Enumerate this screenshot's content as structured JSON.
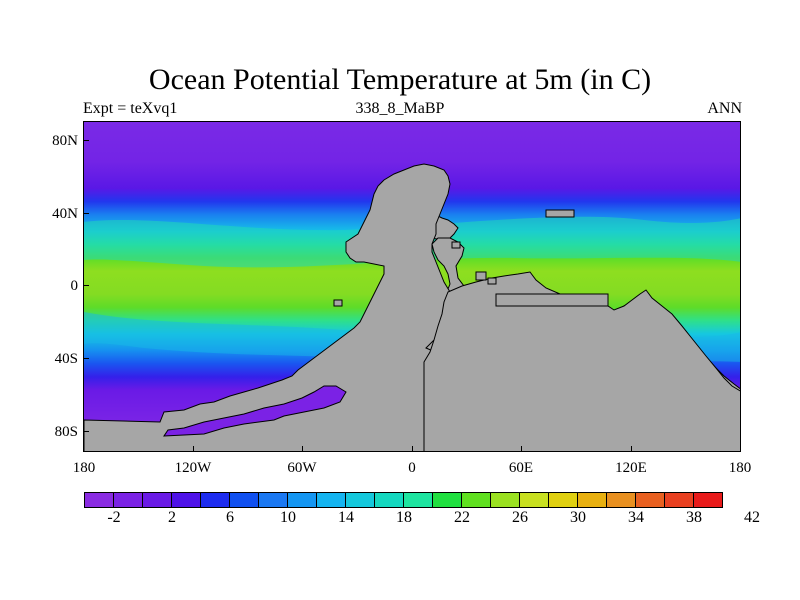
{
  "title": "Ocean Potential Temperature at 5m (in C)",
  "left_label": "Expt = teXvq1",
  "center_label": "338_8_MaBP",
  "right_label": "ANN",
  "lat_labels": [
    "80N",
    "40N",
    "0",
    "40S",
    "80S"
  ],
  "lon_labels": [
    "180",
    "120W",
    "60W",
    "0",
    "60E",
    "120E",
    "180"
  ],
  "colorbar": {
    "labels": [
      "-2",
      "2",
      "6",
      "10",
      "14",
      "18",
      "22",
      "26",
      "30",
      "34",
      "38",
      "42"
    ],
    "colors": [
      "#8a2be2",
      "#7b22e5",
      "#6a1ae6",
      "#4e12e8",
      "#1d2cf0",
      "#1050f0",
      "#1a78f2",
      "#1496f2",
      "#14b4f0",
      "#14c8dc",
      "#14d8c0",
      "#1ee4a0",
      "#20e040",
      "#60e020",
      "#9ae020",
      "#c8e020",
      "#e0d010",
      "#e8b010",
      "#e89020",
      "#e86020",
      "#e84020",
      "#e81a1a"
    ],
    "label_positions": [
      0,
      2,
      4,
      6,
      8,
      10,
      12,
      14,
      16,
      18,
      20,
      22
    ]
  },
  "land_color": "#a6a6a6"
}
